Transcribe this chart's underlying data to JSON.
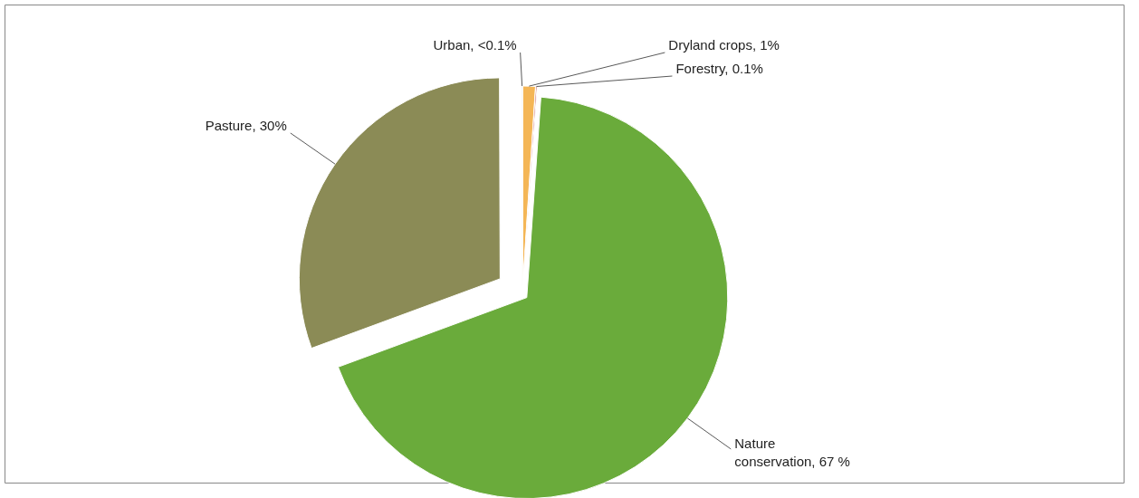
{
  "chart_data": {
    "type": "pie",
    "categories": [
      "Dryland crops",
      "Forestry",
      "Nature conservation",
      "Pasture",
      "Urban"
    ],
    "values": [
      1,
      0.1,
      67,
      30,
      0.05
    ],
    "value_labels": [
      "1%",
      "0.1%",
      "67 %",
      "30%",
      "<0.1%"
    ],
    "colors": [
      "#f4b656",
      "#c0504d",
      "#6aab3b",
      "#8b8b56",
      "#7f7f7f"
    ],
    "legend": false
  }
}
